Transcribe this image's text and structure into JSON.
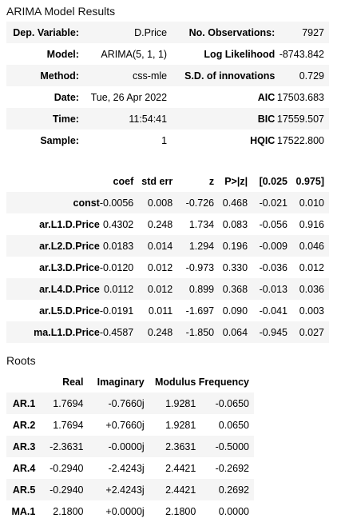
{
  "summary": {
    "caption": "ARIMA Model Results",
    "rows": [
      {
        "l1": "Dep. Variable:",
        "v1": "D.Price",
        "l2": "No. Observations:",
        "v2": "7927"
      },
      {
        "l1": "Model:",
        "v1": "ARIMA(5, 1, 1)",
        "l2": "Log Likelihood",
        "v2": "-8743.842"
      },
      {
        "l1": "Method:",
        "v1": "css-mle",
        "l2": "S.D. of innovations",
        "v2": "0.729"
      },
      {
        "l1": "Date:",
        "v1": "Tue, 26 Apr 2022",
        "l2": "AIC",
        "v2": "17503.683"
      },
      {
        "l1": "Time:",
        "v1": "11:54:41",
        "l2": "BIC",
        "v2": "17559.507"
      },
      {
        "l1": "Sample:",
        "v1": "1",
        "l2": "HQIC",
        "v2": "17522.800"
      }
    ]
  },
  "coefficients": {
    "headers": [
      "",
      "coef",
      "std err",
      "z",
      "P>|z|",
      "[0.025",
      "0.975]"
    ],
    "rows": [
      [
        "const",
        "-0.0056",
        "0.008",
        "-0.726",
        "0.468",
        "-0.021",
        "0.010"
      ],
      [
        "ar.L1.D.Price",
        "0.4302",
        "0.248",
        "1.734",
        "0.083",
        "-0.056",
        "0.916"
      ],
      [
        "ar.L2.D.Price",
        "0.0183",
        "0.014",
        "1.294",
        "0.196",
        "-0.009",
        "0.046"
      ],
      [
        "ar.L3.D.Price",
        "-0.0120",
        "0.012",
        "-0.973",
        "0.330",
        "-0.036",
        "0.012"
      ],
      [
        "ar.L4.D.Price",
        "0.0112",
        "0.012",
        "0.899",
        "0.368",
        "-0.013",
        "0.036"
      ],
      [
        "ar.L5.D.Price",
        "-0.0191",
        "0.011",
        "-1.697",
        "0.090",
        "-0.041",
        "0.003"
      ],
      [
        "ma.L1.D.Price",
        "-0.4587",
        "0.248",
        "-1.850",
        "0.064",
        "-0.945",
        "0.027"
      ]
    ]
  },
  "roots": {
    "caption": "Roots",
    "headers": [
      "",
      "Real",
      "Imaginary",
      "Modulus",
      "Frequency"
    ],
    "rows": [
      [
        "AR.1",
        "1.7694",
        "-0.7660j",
        "1.9281",
        "-0.0650"
      ],
      [
        "AR.2",
        "1.7694",
        "+0.7660j",
        "1.9281",
        "0.0650"
      ],
      [
        "AR.3",
        "-2.3631",
        "-0.0000j",
        "2.3631",
        "-0.5000"
      ],
      [
        "AR.4",
        "-0.2940",
        "-2.4243j",
        "2.4421",
        "-0.2692"
      ],
      [
        "AR.5",
        "-0.2940",
        "+2.4243j",
        "2.4421",
        "0.2692"
      ],
      [
        "MA.1",
        "2.1800",
        "+0.0000j",
        "2.1800",
        "0.0000"
      ]
    ]
  }
}
